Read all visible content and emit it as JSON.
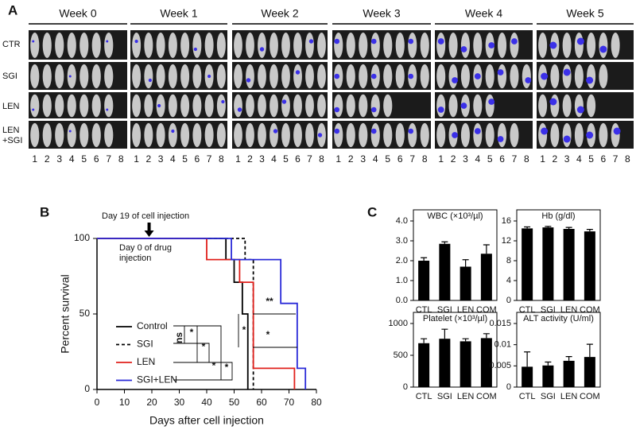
{
  "panel_a": {
    "label": "A",
    "weeks": [
      "Week 0",
      "Week 1",
      "Week 2",
      "Week 3",
      "Week 4",
      "Week 5"
    ],
    "rows": [
      "CTR",
      "SGI",
      "LEN",
      "LEN +SGI"
    ],
    "mouse_numbers": [
      1,
      2,
      3,
      4,
      5,
      6,
      7,
      8
    ]
  },
  "chart_data": [
    {
      "type": "line",
      "panel_label": "B",
      "xlabel": "Days after cell injection",
      "ylabel": "Percent survival",
      "xlim": [
        0,
        80
      ],
      "xticks": [
        0,
        10,
        20,
        30,
        40,
        50,
        60,
        70,
        80
      ],
      "ylim": [
        0,
        100
      ],
      "yticks": [
        0,
        50,
        100
      ],
      "legend": "lower left",
      "step": true,
      "annotations": [
        "Day 19 of cell injection",
        "Day 0 of drug injection",
        "**",
        "*",
        "*",
        "ns",
        "*",
        "*",
        "*",
        "*"
      ],
      "arrow_x": 19,
      "series": [
        {
          "name": "Control",
          "color": "#000000",
          "dash": false,
          "x": [
            0,
            47,
            50,
            53,
            55
          ],
          "values": [
            100,
            86,
            71,
            50,
            0
          ]
        },
        {
          "name": "SGI",
          "color": "#000000",
          "dash": true,
          "x": [
            0,
            54,
            57
          ],
          "values": [
            100,
            86,
            0
          ]
        },
        {
          "name": "LEN",
          "color": "#e0201b",
          "dash": false,
          "x": [
            0,
            40,
            52,
            57,
            72
          ],
          "values": [
            100,
            86,
            71,
            14,
            0
          ]
        },
        {
          "name": "SGI+LEN",
          "color": "#2a2ad8",
          "dash": false,
          "x": [
            0,
            49,
            67,
            73,
            76
          ],
          "values": [
            100,
            86,
            57,
            14,
            0
          ]
        }
      ]
    },
    {
      "type": "bar",
      "panel_label": "C",
      "title": "WBC (×10³/µl)",
      "categories": [
        "CTL",
        "SGI",
        "LEN",
        "COM"
      ],
      "values": [
        2.0,
        2.85,
        1.7,
        2.35
      ],
      "errors": [
        0.15,
        0.1,
        0.35,
        0.45
      ],
      "color": "#000000",
      "ylim": [
        0,
        4
      ],
      "yticks": [
        {
          "value": 0,
          "label": "0.0"
        },
        {
          "value": 1,
          "label": "1.0"
        },
        {
          "value": 2,
          "label": "2.0"
        },
        {
          "value": 3,
          "label": "3.0"
        },
        {
          "value": 4,
          "label": "4.0"
        }
      ]
    },
    {
      "type": "bar",
      "title": "Hb (g/dl)",
      "categories": [
        "CTL",
        "SGI",
        "LEN",
        "COM"
      ],
      "values": [
        14.5,
        14.7,
        14.4,
        13.9
      ],
      "errors": [
        0.3,
        0.2,
        0.3,
        0.4
      ],
      "color": "#000000",
      "ylim": [
        0,
        16
      ],
      "yticks": [
        0,
        4,
        8,
        12,
        16
      ]
    },
    {
      "type": "bar",
      "title": "Platelet (×10³/µl)",
      "categories": [
        "CTL",
        "SGI",
        "LEN",
        "COM"
      ],
      "values": [
        690,
        760,
        720,
        770
      ],
      "errors": [
        70,
        150,
        40,
        70
      ],
      "color": "#000000",
      "ylim": [
        0,
        1000
      ],
      "yticks": [
        0,
        500,
        1000
      ]
    },
    {
      "type": "bar",
      "title": "ALT activity (U/ml)",
      "categories": [
        "CTL",
        "SGI",
        "LEN",
        "COM"
      ],
      "values": [
        0.0048,
        0.0051,
        0.0062,
        0.0071
      ],
      "errors": [
        0.0035,
        0.0008,
        0.001,
        0.003
      ],
      "color": "#000000",
      "ylim": [
        0,
        0.015
      ],
      "yticks": [
        0,
        0.005,
        0.01,
        0.015
      ]
    }
  ]
}
